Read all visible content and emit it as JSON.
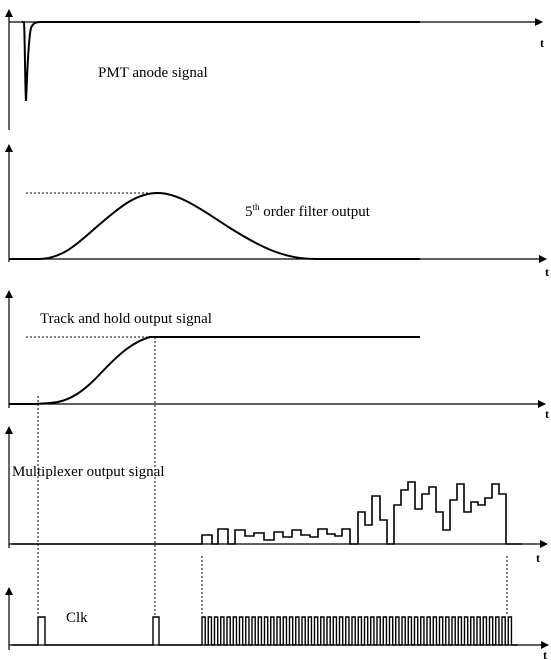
{
  "axis_label": "t",
  "panels": [
    {
      "id": "pmt",
      "label": "PMT anode signal"
    },
    {
      "id": "filter",
      "label_prefix": "5",
      "label_sup": "th",
      "label_suffix": " order filter output"
    },
    {
      "id": "track",
      "label": "Track and hold output signal"
    },
    {
      "id": "mux",
      "label": "Multiplexer output signal"
    },
    {
      "id": "clk",
      "label": "Clk"
    }
  ]
}
